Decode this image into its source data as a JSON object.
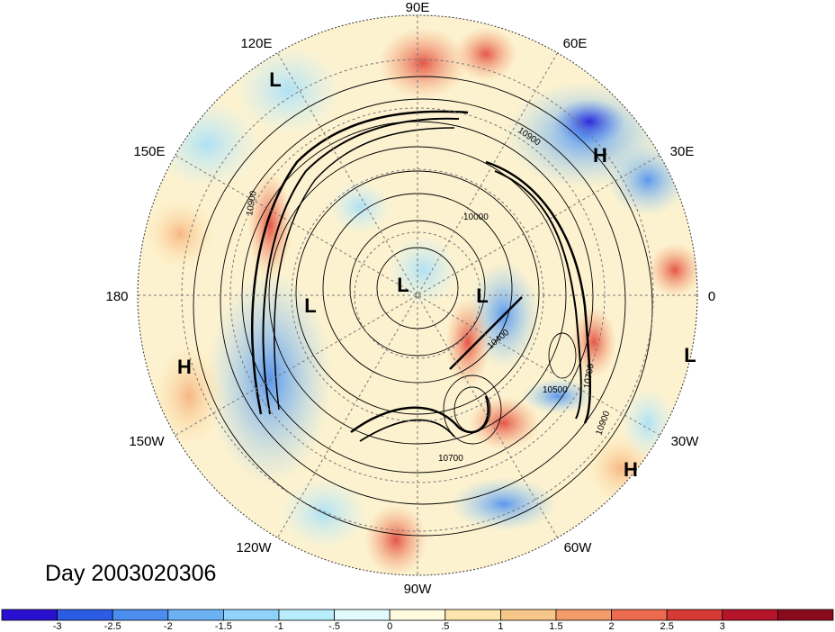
{
  "title": "Day 2003020306",
  "longitude_labels": [
    {
      "name": "lon-90e",
      "text": "90E"
    },
    {
      "name": "lon-60e",
      "text": "60E"
    },
    {
      "name": "lon-120e",
      "text": "120E"
    },
    {
      "name": "lon-30e",
      "text": "30E"
    },
    {
      "name": "lon-150e",
      "text": "150E"
    },
    {
      "name": "lon-0",
      "text": "0"
    },
    {
      "name": "lon-180",
      "text": "180"
    },
    {
      "name": "lon-30w",
      "text": "30W"
    },
    {
      "name": "lon-150w",
      "text": "150W"
    },
    {
      "name": "lon-60w",
      "text": "60W"
    },
    {
      "name": "lon-120w",
      "text": "120W"
    },
    {
      "name": "lon-90w",
      "text": "90W"
    }
  ],
  "pressure_centers": [
    "L",
    "H",
    "L",
    "L",
    "L",
    "H",
    "L",
    "H"
  ],
  "contour_labels": [
    "10900",
    "10000",
    "10900",
    "10400",
    "10500",
    "10700",
    "10900",
    "10700"
  ],
  "colorbar": {
    "colors": [
      "#2a10d0",
      "#2c5ce6",
      "#4b8ef0",
      "#6bb2f5",
      "#8fd2fa",
      "#b8eefc",
      "#e2fbfd",
      "#fffbdf",
      "#fde6ad",
      "#f7c78a",
      "#f39c6a",
      "#ec6b4f",
      "#d63a35",
      "#b5142a",
      "#8a0a1e"
    ],
    "tick_labels": [
      "-3",
      "-2.5",
      "-2",
      "-1.5",
      "-1",
      "-.5",
      "0",
      ".5",
      "1",
      "1.5",
      "2",
      "2.5",
      "3"
    ]
  }
}
